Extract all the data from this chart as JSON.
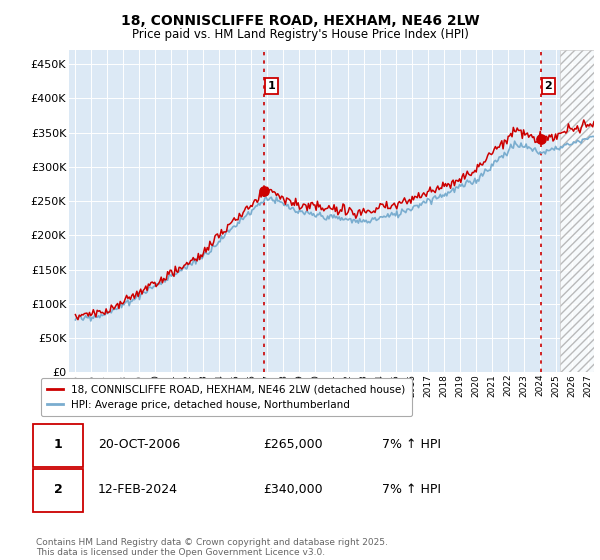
{
  "title": "18, CONNISCLIFFE ROAD, HEXHAM, NE46 2LW",
  "subtitle": "Price paid vs. HM Land Registry's House Price Index (HPI)",
  "ylabel_ticks": [
    "£0",
    "£50K",
    "£100K",
    "£150K",
    "£200K",
    "£250K",
    "£300K",
    "£350K",
    "£400K",
    "£450K"
  ],
  "ytick_values": [
    0,
    50000,
    100000,
    150000,
    200000,
    250000,
    300000,
    350000,
    400000,
    450000
  ],
  "ylim": [
    0,
    470000
  ],
  "xlim_start": 1994.6,
  "xlim_end": 2027.4,
  "sale1_date": 2006.8,
  "sale1_price": 265000,
  "sale2_date": 2024.1,
  "sale2_price": 340000,
  "hatch_start": 2025.3,
  "red_color": "#cc0000",
  "blue_color": "#7aadcf",
  "chart_bg": "#dce9f5",
  "legend_label_red": "18, CONNISCLIFFE ROAD, HEXHAM, NE46 2LW (detached house)",
  "legend_label_blue": "HPI: Average price, detached house, Northumberland",
  "table_rows": [
    [
      "1",
      "20-OCT-2006",
      "£265,000",
      "7% ↑ HPI"
    ],
    [
      "2",
      "12-FEB-2024",
      "£340,000",
      "7% ↑ HPI"
    ]
  ],
  "footer": "Contains HM Land Registry data © Crown copyright and database right 2025.\nThis data is licensed under the Open Government Licence v3.0.",
  "background_color": "#ffffff"
}
